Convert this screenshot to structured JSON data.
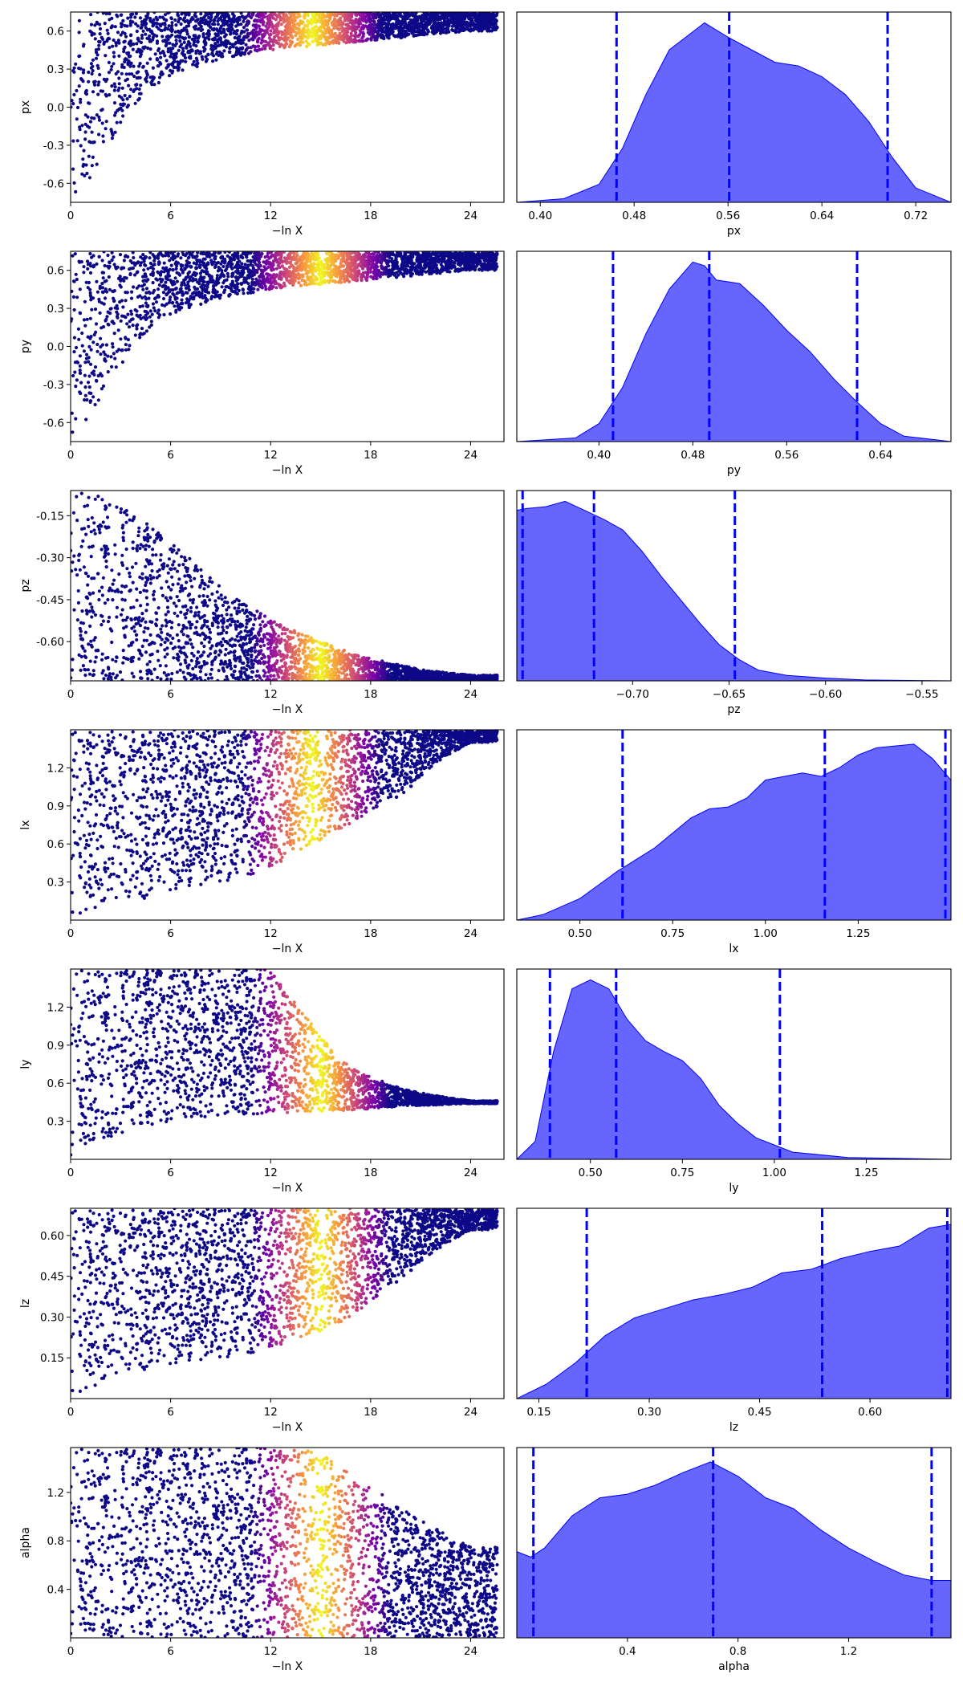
{
  "colors": {
    "density_fill": "#0000ff",
    "density_fill_opacity": 0.6,
    "quantile_line": "#0000ff",
    "scatter_colormap": "plasma",
    "scatter_colors": [
      "#0d0887",
      "#7e03a8",
      "#cc4778",
      "#f89540",
      "#f0f921"
    ]
  },
  "chart_data": [
    {
      "type": "scatter",
      "parameter": "px",
      "xlabel": "−ln X",
      "ylabel": "px",
      "xlim": [
        0,
        26
      ],
      "ylim": [
        -0.75,
        0.75
      ],
      "xticks": [
        "0",
        "6",
        "12",
        "18",
        "24"
      ],
      "yticks": [
        "-0.6",
        "-0.3",
        "0.0",
        "0.3",
        "0.6"
      ],
      "ytick_values": [
        -0.6,
        -0.3,
        0.0,
        0.3,
        0.6
      ],
      "shape": "converging",
      "floor": {
        "x": [
          0,
          1,
          2,
          4,
          6,
          9,
          12,
          16,
          20,
          24
        ],
        "y": [
          -0.75,
          -0.6,
          -0.35,
          0.05,
          0.25,
          0.38,
          0.45,
          0.5,
          0.55,
          0.6
        ]
      },
      "ceiling": 0.75,
      "peak_x": 14.5
    },
    {
      "type": "area",
      "parameter": "px",
      "xlabel": "px",
      "xlim": [
        0.38,
        0.75
      ],
      "xticks": [
        "0.40",
        "0.48",
        "0.56",
        "0.64",
        "0.72"
      ],
      "xtick_values": [
        0.4,
        0.48,
        0.56,
        0.64,
        0.72
      ],
      "density": {
        "x": [
          0.38,
          0.42,
          0.45,
          0.47,
          0.49,
          0.51,
          0.53,
          0.54,
          0.56,
          0.58,
          0.6,
          0.62,
          0.64,
          0.66,
          0.68,
          0.7,
          0.72,
          0.75
        ],
        "y": [
          0.0,
          0.02,
          0.1,
          0.3,
          0.6,
          0.85,
          0.95,
          1.0,
          0.92,
          0.85,
          0.78,
          0.76,
          0.7,
          0.6,
          0.45,
          0.25,
          0.08,
          0.0
        ]
      },
      "quantiles": [
        0.465,
        0.561,
        0.696
      ]
    },
    {
      "type": "scatter",
      "parameter": "py",
      "xlabel": "−ln X",
      "ylabel": "py",
      "xlim": [
        0,
        26
      ],
      "ylim": [
        -0.75,
        0.75
      ],
      "xticks": [
        "0",
        "6",
        "12",
        "18",
        "24"
      ],
      "yticks": [
        "-0.6",
        "-0.3",
        "0.0",
        "0.3",
        "0.6"
      ],
      "ytick_values": [
        -0.6,
        -0.3,
        0.0,
        0.3,
        0.6
      ],
      "shape": "converging",
      "floor": {
        "x": [
          0,
          1,
          2,
          4,
          6,
          9,
          12,
          16,
          20,
          24
        ],
        "y": [
          -0.75,
          -0.6,
          -0.35,
          0.05,
          0.25,
          0.38,
          0.45,
          0.5,
          0.55,
          0.6
        ]
      },
      "ceiling": 0.75,
      "peak_x": 15
    },
    {
      "type": "area",
      "parameter": "py",
      "xlabel": "py",
      "xlim": [
        0.33,
        0.7
      ],
      "xticks": [
        "0.40",
        "0.48",
        "0.56",
        "0.64"
      ],
      "xtick_values": [
        0.4,
        0.48,
        0.56,
        0.64
      ],
      "density": {
        "x": [
          0.33,
          0.38,
          0.4,
          0.42,
          0.44,
          0.46,
          0.48,
          0.49,
          0.5,
          0.52,
          0.54,
          0.56,
          0.58,
          0.6,
          0.62,
          0.64,
          0.66,
          0.7
        ],
        "y": [
          0.0,
          0.02,
          0.1,
          0.3,
          0.6,
          0.85,
          1.0,
          0.98,
          0.9,
          0.88,
          0.76,
          0.62,
          0.5,
          0.35,
          0.22,
          0.1,
          0.03,
          0.0
        ]
      },
      "quantiles": [
        0.412,
        0.494,
        0.62
      ]
    },
    {
      "type": "scatter",
      "parameter": "pz",
      "xlabel": "−ln X",
      "ylabel": "pz",
      "xlim": [
        0,
        26
      ],
      "ylim": [
        -0.74,
        -0.06
      ],
      "xticks": [
        "0",
        "6",
        "12",
        "18",
        "24"
      ],
      "yticks": [
        "-0.15",
        "-0.30",
        "-0.45",
        "-0.60"
      ],
      "ytick_values": [
        -0.15,
        -0.3,
        -0.45,
        -0.6
      ],
      "shape": "decaying",
      "floor": -0.74,
      "ceiling": {
        "x": [
          0,
          2,
          4,
          6,
          8,
          10,
          12,
          15,
          18,
          21,
          24
        ],
        "y": [
          -0.06,
          -0.07,
          -0.15,
          -0.24,
          -0.35,
          -0.45,
          -0.52,
          -0.6,
          -0.66,
          -0.7,
          -0.72
        ]
      },
      "peak_x": 15
    },
    {
      "type": "area",
      "parameter": "pz",
      "xlabel": "pz",
      "xlim": [
        -0.76,
        -0.535
      ],
      "xticks": [
        "−0.70",
        "−0.65",
        "−0.60",
        "−0.55"
      ],
      "xtick_values": [
        -0.7,
        -0.65,
        -0.6,
        -0.55
      ],
      "density": {
        "x": [
          -0.76,
          -0.755,
          -0.745,
          -0.735,
          -0.725,
          -0.715,
          -0.705,
          -0.695,
          -0.685,
          -0.675,
          -0.665,
          -0.655,
          -0.645,
          -0.635,
          -0.62,
          -0.6,
          -0.58,
          -0.535
        ],
        "y": [
          0.95,
          0.96,
          0.97,
          1.0,
          0.95,
          0.9,
          0.84,
          0.72,
          0.58,
          0.45,
          0.32,
          0.2,
          0.12,
          0.06,
          0.03,
          0.015,
          0.005,
          0.0
        ]
      },
      "quantiles": [
        -0.757,
        -0.72,
        -0.647
      ]
    },
    {
      "type": "scatter",
      "parameter": "lx",
      "xlabel": "−ln X",
      "ylabel": "lx",
      "xlim": [
        0,
        26
      ],
      "ylim": [
        0,
        1.5
      ],
      "xticks": [
        "0",
        "6",
        "12",
        "18",
        "24"
      ],
      "yticks": [
        "0.3",
        "0.6",
        "0.9",
        "1.2"
      ],
      "ytick_values": [
        0.3,
        0.6,
        0.9,
        1.2
      ],
      "shape": "converging",
      "floor": {
        "x": [
          0,
          2,
          4,
          6,
          9,
          12,
          14,
          16,
          18,
          20,
          22,
          24
        ],
        "y": [
          0.0,
          0.1,
          0.15,
          0.22,
          0.3,
          0.4,
          0.55,
          0.7,
          0.85,
          1.0,
          1.25,
          1.4
        ]
      },
      "ceiling": 1.5,
      "peak_x": 14.5
    },
    {
      "type": "area",
      "parameter": "lx",
      "xlabel": "lx",
      "xlim": [
        0.33,
        1.5
      ],
      "xticks": [
        "0.50",
        "0.75",
        "1.00",
        "1.25"
      ],
      "xtick_values": [
        0.5,
        0.75,
        1.0,
        1.25
      ],
      "density": {
        "x": [
          0.33,
          0.4,
          0.5,
          0.6,
          0.7,
          0.8,
          0.85,
          0.9,
          0.95,
          1.0,
          1.05,
          1.1,
          1.15,
          1.2,
          1.25,
          1.3,
          1.35,
          1.4,
          1.45,
          1.5
        ],
        "y": [
          0.0,
          0.03,
          0.12,
          0.27,
          0.4,
          0.57,
          0.62,
          0.63,
          0.68,
          0.78,
          0.8,
          0.82,
          0.8,
          0.85,
          0.92,
          0.96,
          0.97,
          0.98,
          0.9,
          0.78
        ]
      },
      "quantiles": [
        0.615,
        1.16,
        1.485
      ]
    },
    {
      "type": "scatter",
      "parameter": "ly",
      "xlabel": "−ln X",
      "ylabel": "ly",
      "xlim": [
        0,
        26
      ],
      "ylim": [
        0,
        1.5
      ],
      "xticks": [
        "0",
        "6",
        "12",
        "18",
        "24"
      ],
      "yticks": [
        "0.3",
        "0.6",
        "0.9",
        "1.2"
      ],
      "ytick_values": [
        0.3,
        0.6,
        0.9,
        1.2
      ],
      "shape": "funnel",
      "floor": {
        "x": [
          0,
          2,
          4,
          6,
          9,
          12,
          16,
          20,
          24
        ],
        "y": [
          0.0,
          0.15,
          0.25,
          0.3,
          0.35,
          0.36,
          0.38,
          0.42,
          0.44
        ]
      },
      "ceiling": {
        "x": [
          0,
          10,
          12,
          14,
          16,
          18,
          20,
          22,
          24
        ],
        "y": [
          1.5,
          1.5,
          1.5,
          1.15,
          0.8,
          0.65,
          0.55,
          0.5,
          0.46
        ]
      },
      "peak_x": 15
    },
    {
      "type": "area",
      "parameter": "ly",
      "xlabel": "ly",
      "xlim": [
        0.3,
        1.48
      ],
      "xticks": [
        "0.50",
        "0.75",
        "1.00",
        "1.25"
      ],
      "xtick_values": [
        0.5,
        0.75,
        1.0,
        1.25
      ],
      "density": {
        "x": [
          0.3,
          0.35,
          0.4,
          0.45,
          0.5,
          0.55,
          0.6,
          0.65,
          0.7,
          0.75,
          0.8,
          0.85,
          0.9,
          0.95,
          1.0,
          1.05,
          1.1,
          1.2,
          1.48
        ],
        "y": [
          0.0,
          0.1,
          0.6,
          0.95,
          1.0,
          0.95,
          0.78,
          0.66,
          0.6,
          0.55,
          0.45,
          0.3,
          0.2,
          0.12,
          0.08,
          0.04,
          0.03,
          0.01,
          0.0
        ]
      },
      "quantiles": [
        0.39,
        0.57,
        1.015
      ]
    },
    {
      "type": "scatter",
      "parameter": "lz",
      "xlabel": "−ln X",
      "ylabel": "lz",
      "xlim": [
        0,
        26
      ],
      "ylim": [
        0,
        0.7
      ],
      "xticks": [
        "0",
        "6",
        "12",
        "18",
        "24"
      ],
      "yticks": [
        "0.15",
        "0.30",
        "0.45",
        "0.60"
      ],
      "ytick_values": [
        0.15,
        0.3,
        0.45,
        0.6
      ],
      "shape": "converging",
      "floor": {
        "x": [
          0,
          2,
          4,
          6,
          9,
          12,
          14,
          16,
          18,
          20,
          22,
          24
        ],
        "y": [
          0.0,
          0.05,
          0.1,
          0.12,
          0.15,
          0.18,
          0.22,
          0.27,
          0.35,
          0.45,
          0.55,
          0.62
        ]
      },
      "ceiling": 0.7,
      "peak_x": 15
    },
    {
      "type": "area",
      "parameter": "lz",
      "xlabel": "lz",
      "xlim": [
        0.12,
        0.71
      ],
      "xticks": [
        "0.15",
        "0.30",
        "0.45",
        "0.60"
      ],
      "xtick_values": [
        0.15,
        0.3,
        0.45,
        0.6
      ],
      "density": {
        "x": [
          0.12,
          0.16,
          0.2,
          0.24,
          0.28,
          0.32,
          0.36,
          0.4,
          0.44,
          0.48,
          0.52,
          0.56,
          0.6,
          0.64,
          0.68,
          0.71
        ],
        "y": [
          0.0,
          0.08,
          0.2,
          0.35,
          0.45,
          0.5,
          0.55,
          0.58,
          0.62,
          0.7,
          0.72,
          0.78,
          0.82,
          0.85,
          0.95,
          0.97
        ]
      },
      "quantiles": [
        0.215,
        0.535,
        0.705
      ]
    },
    {
      "type": "scatter",
      "parameter": "alpha",
      "xlabel": "−ln X",
      "ylabel": "alpha",
      "xlim": [
        0,
        26
      ],
      "ylim": [
        0,
        1.57
      ],
      "xticks": [
        "0",
        "6",
        "12",
        "18",
        "24"
      ],
      "yticks": [
        "0.4",
        "0.8",
        "1.2"
      ],
      "ytick_values": [
        0.4,
        0.8,
        1.2
      ],
      "shape": "band",
      "floor": 0.0,
      "ceiling": {
        "x": [
          0,
          14,
          16,
          18,
          20,
          22,
          24
        ],
        "y": [
          1.57,
          1.57,
          1.45,
          1.25,
          1.05,
          0.9,
          0.75
        ]
      },
      "peak_x": 15
    },
    {
      "type": "area",
      "parameter": "alpha",
      "xlabel": "alpha",
      "xlim": [
        0,
        1.57
      ],
      "xticks": [
        "0.4",
        "0.8",
        "1.2"
      ],
      "xtick_values": [
        0.4,
        0.8,
        1.2
      ],
      "density": {
        "x": [
          0.0,
          0.05,
          0.1,
          0.2,
          0.3,
          0.4,
          0.5,
          0.6,
          0.7,
          0.8,
          0.9,
          1.0,
          1.1,
          1.2,
          1.3,
          1.4,
          1.5,
          1.57
        ],
        "y": [
          0.48,
          0.45,
          0.5,
          0.68,
          0.78,
          0.8,
          0.85,
          0.92,
          0.98,
          0.9,
          0.78,
          0.72,
          0.6,
          0.5,
          0.42,
          0.35,
          0.32,
          0.32
        ]
      },
      "quantiles": [
        0.06,
        0.71,
        1.5
      ]
    }
  ]
}
